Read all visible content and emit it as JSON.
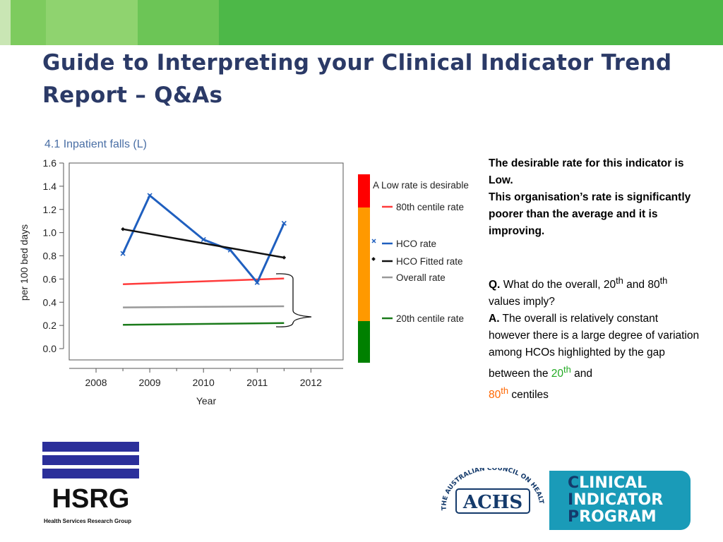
{
  "slide": {
    "title": "Guide to Interpreting your Clinical Indicator Trend Report – Q&As"
  },
  "chart_data": {
    "type": "line",
    "title": "4.1 Inpatient falls (L)",
    "xlabel": "Year",
    "ylabel": "per 100 bed days",
    "x_ticks": [
      2008,
      2009,
      2010,
      2011,
      2012
    ],
    "y_ticks": [
      "0.0",
      "0.2",
      "0.4",
      "0.6",
      "0.8",
      "1.0",
      "1.2",
      "1.4",
      "1.6"
    ],
    "xlim": [
      2007.5,
      2012.6
    ],
    "ylim": [
      0.0,
      1.6
    ],
    "grid": false,
    "legend_position": "right",
    "series": [
      {
        "name": "80th centile rate",
        "color": "#ff3b3b",
        "x": [
          2008.5,
          2011.5
        ],
        "y": [
          0.555,
          0.605
        ]
      },
      {
        "name": "HCO rate",
        "color": "#1f5fbf",
        "marker": "x",
        "x": [
          2008.5,
          2009.0,
          2010.0,
          2010.5,
          2011.0,
          2011.5
        ],
        "y": [
          0.82,
          1.32,
          0.94,
          0.85,
          0.57,
          1.08
        ]
      },
      {
        "name": "HCO Fitted rate",
        "color": "#111111",
        "marker": "diamond",
        "x": [
          2008.5,
          2011.5
        ],
        "y": [
          1.03,
          0.785
        ]
      },
      {
        "name": "Overall rate",
        "color": "#999999",
        "x": [
          2008.5,
          2011.5
        ],
        "y": [
          0.355,
          0.365
        ]
      },
      {
        "name": "20th centile rate",
        "color": "#1a7a1a",
        "x": [
          2008.5,
          2011.5
        ],
        "y": [
          0.205,
          0.22
        ]
      }
    ],
    "legend_header": "A Low rate is desirable",
    "indicator_bar_colors": [
      "#ff0000",
      "#ff9900",
      "#008000"
    ]
  },
  "explanation": {
    "summary_line1": "The desirable rate for this indicator is Low.",
    "summary_line2": "This organisation’s rate is significantly poorer than the average and it is improving.",
    "q_label": "Q.",
    "q_text_pre": "What do the overall, 20",
    "q_sup1": "th",
    "q_text_mid": "and 80",
    "q_sup2": "th",
    "q_text_post": "values imply?",
    "a_label": "A.",
    "a_text_pre": "The overall is relatively constant however there is a large degree of variation among HCOs highlighted by the gap between the",
    "a_20": "20",
    "a_sup1": "th",
    "a_and": "and",
    "a_80": "80",
    "a_sup2": "th",
    "a_text_post": "centiles"
  },
  "logos": {
    "hsrg_name": "HSRG",
    "hsrg_sub": "Health Services Research Group",
    "achs_seal": "THE AUSTRALIAN COUNCIL ON HEALTHCARE STANDARDS",
    "achs_name": "ACHS",
    "cip_line1_initial": "C",
    "cip_line1_rest": "LINICAL",
    "cip_line2_initial": "I",
    "cip_line2_rest": "NDICATOR",
    "cip_line3_initial": "P",
    "cip_line3_rest": "ROGRAM"
  }
}
